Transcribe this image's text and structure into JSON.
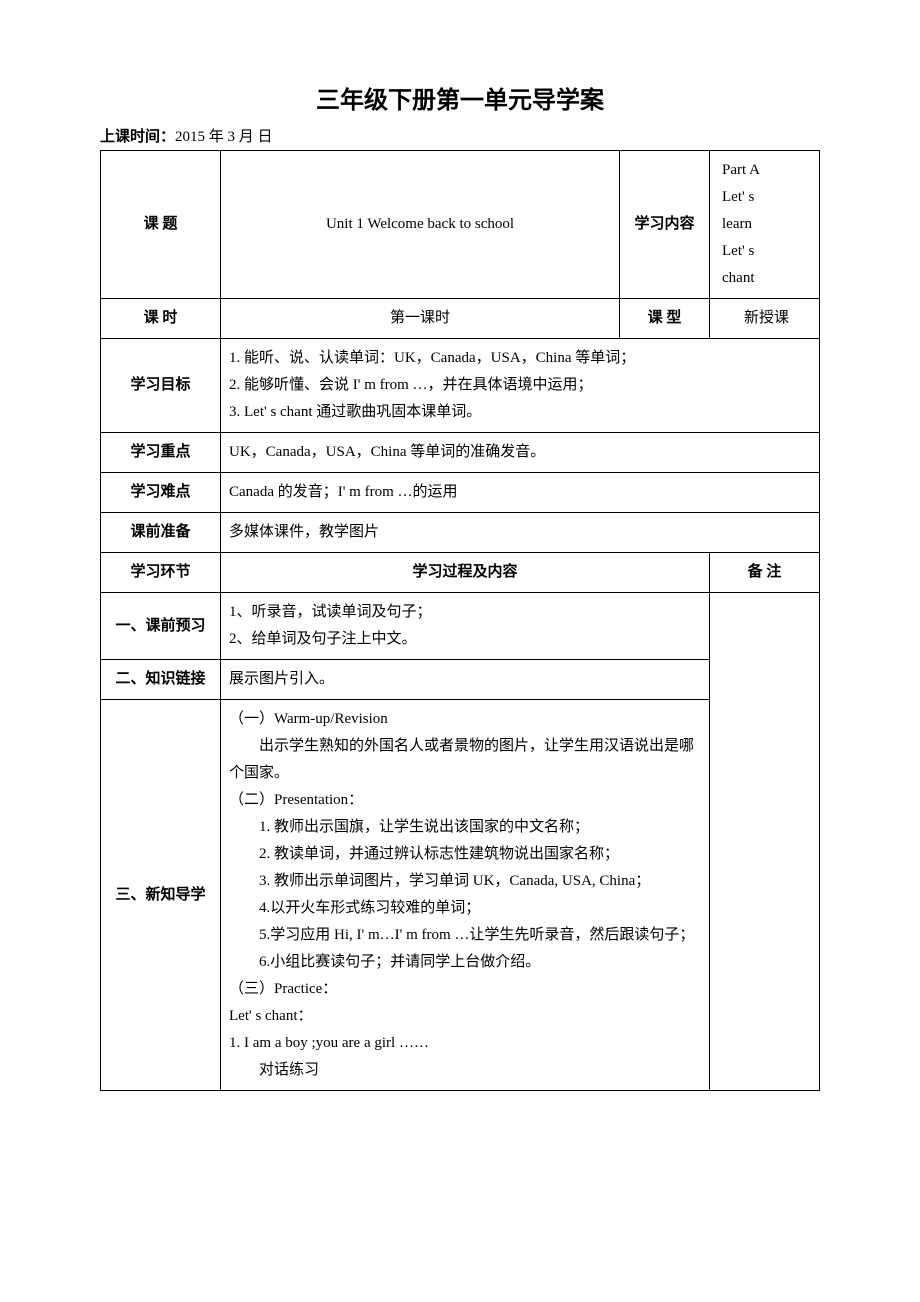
{
  "title": "三年级下册第一单元导学案",
  "subtitle_label": "上课时间：",
  "subtitle_value": "2015 年 3 月   日",
  "rows": {
    "topic": {
      "label": "课  题",
      "value": "Unit 1  Welcome back to school",
      "label2": "学习内容",
      "value2": "  Part A\nLet' s\nlearn\nLet' s\nchant"
    },
    "period": {
      "label": "课  时",
      "value": "第一课时",
      "label2": "课  型",
      "value2": "新授课"
    },
    "objective": {
      "label": "学习目标",
      "line1": "1. 能听、说、认读单词：UK，Canada，USA，China 等单词；",
      "line2": "2. 能够听懂、会说 I' m from …，并在具体语境中运用；",
      "line3": "3. Let' s chant 通过歌曲巩固本课单词。"
    },
    "keypoint": {
      "label": "学习重点",
      "value": "UK，Canada，USA，China 等单词的准确发音。"
    },
    "difficulty": {
      "label": "学习难点",
      "value": "Canada 的发音；I' m from …的运用"
    },
    "prep": {
      "label": "课前准备",
      "value": "多媒体课件，教学图片"
    },
    "segment": {
      "label": "学习环节",
      "process_header": "学习过程及内容",
      "notes_header": "备  注"
    },
    "preview": {
      "label": "一、课前预习",
      "line1": "1、听录音，试读单词及句子；",
      "line2": "2、给单词及句子注上中文。"
    },
    "link": {
      "label": "二、知识链接",
      "value": "展示图片引入。"
    },
    "newknowledge": {
      "label": "三、新知导学",
      "s1": "（一）Warm-up/Revision",
      "s2": "出示学生熟知的外国名人或者景物的图片，让学生用汉语说出是哪个国家。",
      "s3": "（二）Presentation：",
      "s4": "1. 教师出示国旗，让学生说出该国家的中文名称；",
      "s5": "2. 教读单词，并通过辨认标志性建筑物说出国家名称；",
      "s6": "3. 教师出示单词图片，学习单词 UK，Canada, USA, China；",
      "s7": "4.以开火车形式练习较难的单词；",
      "s8": "5.学习应用 Hi, I' m…I' m from …让学生先听录音，然后跟读句子；",
      "s9": "6.小组比赛读句子；并请同学上台做介绍。",
      "s10": "（三）Practice：",
      "s11": "Let' s chant：",
      "s12": "1. I am a boy ;you are a girl ……",
      "s13": "对话练习"
    }
  },
  "colors": {
    "text": "#000000",
    "background": "#ffffff",
    "border": "#000000"
  }
}
